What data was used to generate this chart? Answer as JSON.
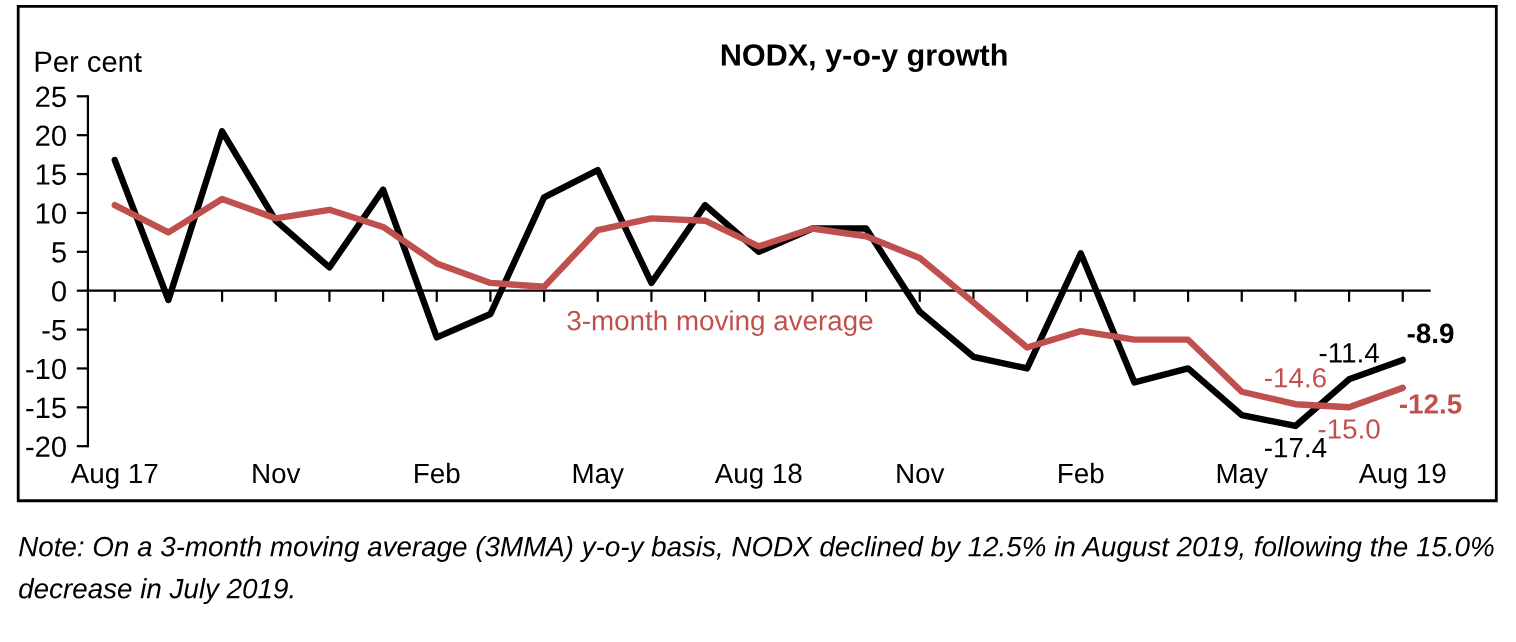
{
  "chart_data": {
    "type": "line",
    "title": "NODX, y-o-y growth",
    "ylabel": "Per cent",
    "categories": [
      "Aug 17",
      null,
      null,
      "Nov",
      null,
      null,
      "Feb",
      null,
      null,
      "May",
      null,
      null,
      "Aug 18",
      null,
      null,
      "Nov",
      null,
      null,
      "Feb",
      null,
      null,
      "May",
      null,
      null,
      "Aug 19"
    ],
    "series": [
      {
        "color": "#000000",
        "values": [
          16.8,
          -1.2,
          20.5,
          9,
          3,
          13,
          -6,
          -3,
          12,
          15.5,
          1,
          11,
          5,
          8,
          8,
          -2.7,
          -8.5,
          -10,
          4.8,
          -11.8,
          -10,
          -16,
          -17.4,
          -11.4,
          -8.9
        ],
        "value_labels": [
          null,
          null,
          null,
          null,
          null,
          null,
          null,
          null,
          null,
          null,
          null,
          null,
          null,
          null,
          null,
          null,
          null,
          null,
          null,
          null,
          null,
          null,
          "-17.4",
          "-11.4",
          "-8.9"
        ]
      },
      {
        "name": "3-month moving average",
        "color": "#c0504d",
        "values": [
          11,
          7.5,
          11.8,
          9.3,
          10.4,
          8.2,
          3.5,
          1,
          0.5,
          7.8,
          9.3,
          9,
          5.7,
          8,
          7,
          4.2,
          -1.5,
          -7.3,
          -5.2,
          -6.3,
          -6.3,
          -13,
          -14.6,
          -15.0,
          -12.5
        ],
        "value_labels": [
          null,
          null,
          null,
          null,
          null,
          null,
          null,
          null,
          null,
          null,
          null,
          null,
          null,
          null,
          null,
          null,
          null,
          null,
          null,
          null,
          null,
          null,
          "-14.6",
          "-15.0",
          "-12.5"
        ]
      }
    ],
    "ylim": [
      -20,
      25
    ],
    "yticks": [
      -20,
      -15,
      -10,
      -5,
      0,
      5,
      10,
      15,
      20,
      25
    ],
    "legend": false,
    "marker": "none",
    "line_style": "solid",
    "annotations": [
      "Note: On a 3-month moving average (3MMA) y-o-y basis, NODX declined by 12.5% in August 2019, following the 15.0% decrease in July 2019."
    ]
  }
}
